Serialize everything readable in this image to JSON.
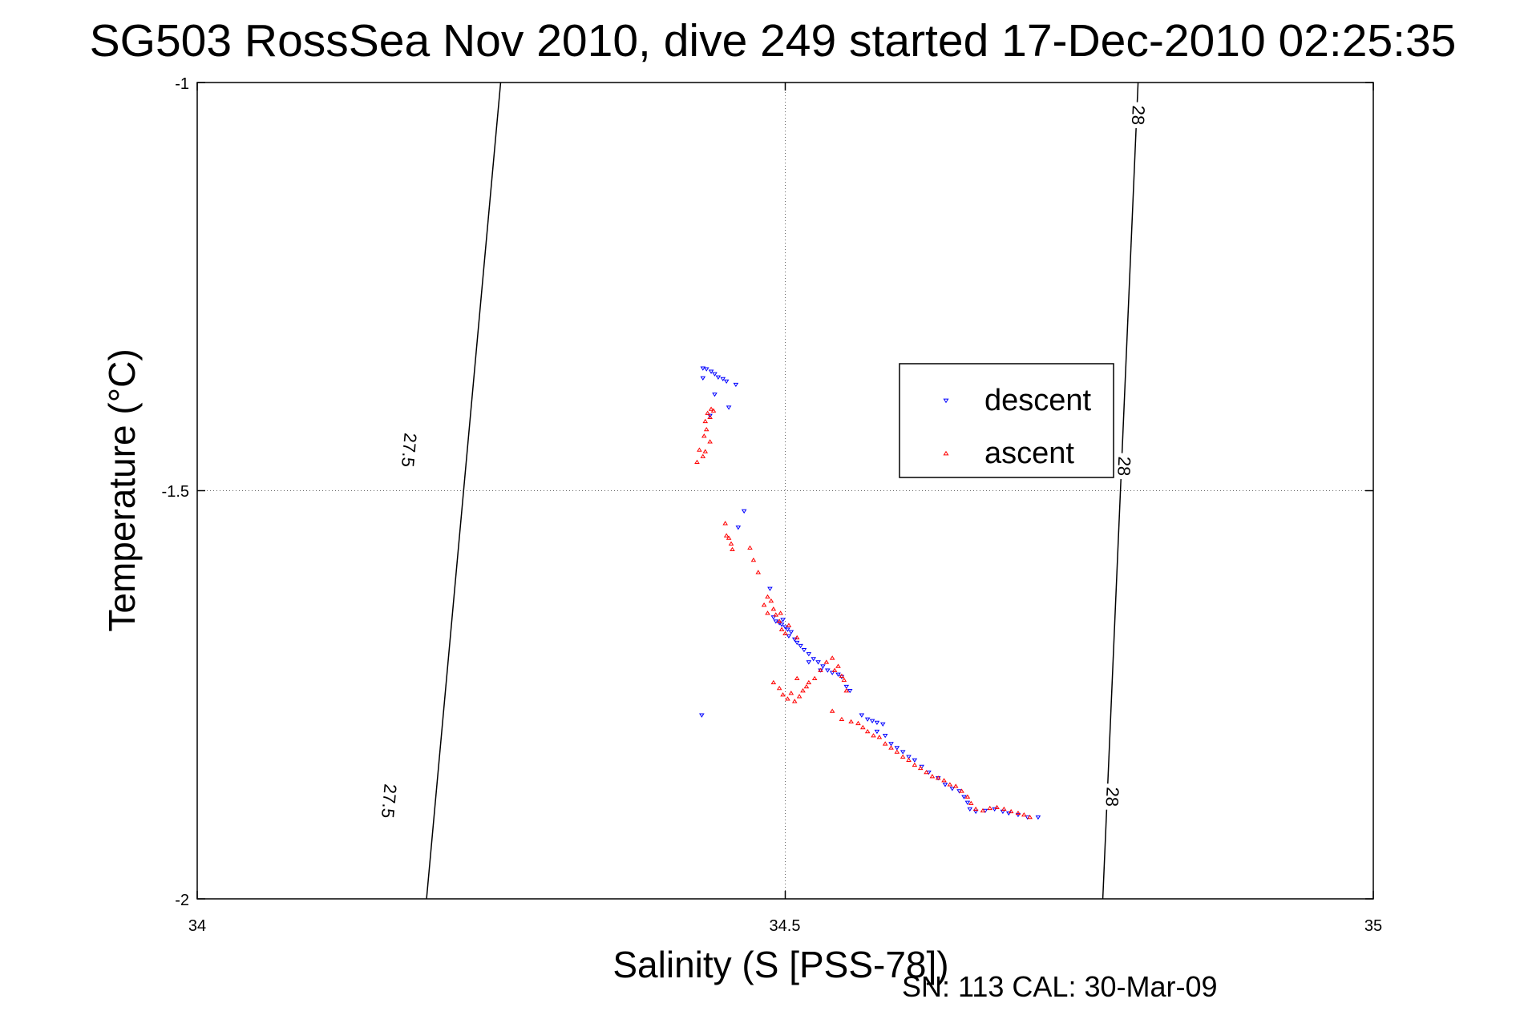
{
  "chart_data": {
    "type": "scatter",
    "title": "SG503 RossSea Nov 2010, dive 249 started 17-Dec-2010 02:25:35",
    "xlabel": "Salinity (S [PSS-78])",
    "ylabel": "Temperature (°C)",
    "xlim": [
      34,
      35
    ],
    "ylim": [
      -2,
      -1
    ],
    "xticks": [
      "34",
      "34.5",
      "35"
    ],
    "yticks": [
      "-1",
      "-1.5",
      "-2"
    ],
    "grid": true,
    "legend_position": "center-right",
    "annotation": "SN: 113  CAL: 30-Mar-09",
    "contours": [
      {
        "label": "27.5",
        "points": [
          [
            34.195,
            -2.0
          ],
          [
            34.258,
            -1.0
          ]
        ],
        "label_positions": [
          [
            34.162,
            -1.88
          ],
          [
            34.179,
            -1.45
          ]
        ]
      },
      {
        "label": "28",
        "points": [
          [
            34.77,
            -2.0
          ],
          [
            34.8,
            -1.0
          ]
        ],
        "label_positions": [
          [
            34.777,
            -1.875
          ],
          [
            34.787,
            -1.47
          ],
          [
            34.799,
            -1.04
          ]
        ]
      }
    ],
    "series": [
      {
        "name": "descent",
        "color": "#0000ff",
        "marker": "triangle-down",
        "points": [
          [
            34.43,
            -1.35
          ],
          [
            34.433,
            -1.351
          ],
          [
            34.437,
            -1.354
          ],
          [
            34.44,
            -1.357
          ],
          [
            34.443,
            -1.361
          ],
          [
            34.447,
            -1.363
          ],
          [
            34.43,
            -1.362
          ],
          [
            34.45,
            -1.366
          ],
          [
            34.458,
            -1.37
          ],
          [
            34.44,
            -1.382
          ],
          [
            34.452,
            -1.398
          ],
          [
            34.436,
            -1.408
          ],
          [
            34.465,
            -1.525
          ],
          [
            34.46,
            -1.545
          ],
          [
            34.487,
            -1.62
          ],
          [
            34.49,
            -1.655
          ],
          [
            34.492,
            -1.66
          ],
          [
            34.495,
            -1.662
          ],
          [
            34.497,
            -1.664
          ],
          [
            34.5,
            -1.667
          ],
          [
            34.498,
            -1.658
          ],
          [
            34.502,
            -1.67
          ],
          [
            34.505,
            -1.673
          ],
          [
            34.503,
            -1.678
          ],
          [
            34.508,
            -1.682
          ],
          [
            34.51,
            -1.686
          ],
          [
            34.513,
            -1.69
          ],
          [
            34.516,
            -1.695
          ],
          [
            34.52,
            -1.7
          ],
          [
            34.524,
            -1.706
          ],
          [
            34.528,
            -1.71
          ],
          [
            34.532,
            -1.715
          ],
          [
            34.536,
            -1.72
          ],
          [
            34.54,
            -1.723
          ],
          [
            34.545,
            -1.725
          ],
          [
            34.548,
            -1.728
          ],
          [
            34.552,
            -1.74
          ],
          [
            34.555,
            -1.745
          ],
          [
            34.52,
            -1.71
          ],
          [
            34.53,
            -1.72
          ],
          [
            34.565,
            -1.775
          ],
          [
            34.57,
            -1.78
          ],
          [
            34.574,
            -1.782
          ],
          [
            34.578,
            -1.784
          ],
          [
            34.583,
            -1.786
          ],
          [
            34.578,
            -1.795
          ],
          [
            34.585,
            -1.8
          ],
          [
            34.59,
            -1.81
          ],
          [
            34.595,
            -1.815
          ],
          [
            34.6,
            -1.82
          ],
          [
            34.605,
            -1.826
          ],
          [
            34.61,
            -1.83
          ],
          [
            34.616,
            -1.838
          ],
          [
            34.622,
            -1.845
          ],
          [
            34.63,
            -1.852
          ],
          [
            34.636,
            -1.86
          ],
          [
            34.642,
            -1.865
          ],
          [
            34.648,
            -1.868
          ],
          [
            34.652,
            -1.875
          ],
          [
            34.655,
            -1.882
          ],
          [
            34.657,
            -1.89
          ],
          [
            34.662,
            -1.893
          ],
          [
            34.67,
            -1.892
          ],
          [
            34.678,
            -1.89
          ],
          [
            34.685,
            -1.893
          ],
          [
            34.69,
            -1.895
          ],
          [
            34.698,
            -1.897
          ],
          [
            34.706,
            -1.9
          ],
          [
            34.715,
            -1.9
          ],
          [
            34.429,
            -1.775
          ]
        ]
      },
      {
        "name": "ascent",
        "color": "#ff0000",
        "marker": "triangle-up",
        "points": [
          [
            34.437,
            -1.4
          ],
          [
            34.439,
            -1.402
          ],
          [
            34.434,
            -1.405
          ],
          [
            34.436,
            -1.41
          ],
          [
            34.432,
            -1.415
          ],
          [
            34.433,
            -1.425
          ],
          [
            34.431,
            -1.433
          ],
          [
            34.436,
            -1.44
          ],
          [
            34.427,
            -1.45
          ],
          [
            34.43,
            -1.458
          ],
          [
            34.432,
            -1.452
          ],
          [
            34.425,
            -1.465
          ],
          [
            34.449,
            -1.54
          ],
          [
            34.45,
            -1.555
          ],
          [
            34.452,
            -1.558
          ],
          [
            34.454,
            -1.565
          ],
          [
            34.455,
            -1.572
          ],
          [
            34.47,
            -1.57
          ],
          [
            34.473,
            -1.585
          ],
          [
            34.477,
            -1.6
          ],
          [
            34.485,
            -1.63
          ],
          [
            34.488,
            -1.635
          ],
          [
            34.482,
            -1.64
          ],
          [
            34.49,
            -1.645
          ],
          [
            34.485,
            -1.65
          ],
          [
            34.492,
            -1.652
          ],
          [
            34.495,
            -1.66
          ],
          [
            34.497,
            -1.67
          ],
          [
            34.5,
            -1.675
          ],
          [
            34.503,
            -1.665
          ],
          [
            34.51,
            -1.68
          ],
          [
            34.496,
            -1.65
          ],
          [
            34.49,
            -1.735
          ],
          [
            34.495,
            -1.742
          ],
          [
            34.498,
            -1.75
          ],
          [
            34.502,
            -1.755
          ],
          [
            34.505,
            -1.748
          ],
          [
            34.508,
            -1.758
          ],
          [
            34.512,
            -1.752
          ],
          [
            34.515,
            -1.745
          ],
          [
            34.518,
            -1.74
          ],
          [
            34.51,
            -1.73
          ],
          [
            34.52,
            -1.735
          ],
          [
            34.525,
            -1.73
          ],
          [
            34.53,
            -1.72
          ],
          [
            34.535,
            -1.71
          ],
          [
            34.54,
            -1.705
          ],
          [
            34.545,
            -1.715
          ],
          [
            34.542,
            -1.72
          ],
          [
            34.548,
            -1.727
          ],
          [
            34.55,
            -1.732
          ],
          [
            34.552,
            -1.745
          ],
          [
            34.54,
            -1.77
          ],
          [
            34.548,
            -1.78
          ],
          [
            34.556,
            -1.783
          ],
          [
            34.562,
            -1.785
          ],
          [
            34.566,
            -1.79
          ],
          [
            34.57,
            -1.795
          ],
          [
            34.575,
            -1.8
          ],
          [
            34.58,
            -1.802
          ],
          [
            34.585,
            -1.81
          ],
          [
            34.59,
            -1.815
          ],
          [
            34.595,
            -1.82
          ],
          [
            34.6,
            -1.826
          ],
          [
            34.605,
            -1.83
          ],
          [
            34.61,
            -1.836
          ],
          [
            34.615,
            -1.84
          ],
          [
            34.62,
            -1.845
          ],
          [
            34.625,
            -1.85
          ],
          [
            34.63,
            -1.852
          ],
          [
            34.635,
            -1.855
          ],
          [
            34.64,
            -1.86
          ],
          [
            34.645,
            -1.862
          ],
          [
            34.65,
            -1.868
          ],
          [
            34.655,
            -1.875
          ],
          [
            34.658,
            -1.883
          ],
          [
            34.662,
            -1.89
          ],
          [
            34.668,
            -1.892
          ],
          [
            34.674,
            -1.889
          ],
          [
            34.68,
            -1.888
          ],
          [
            34.686,
            -1.89
          ],
          [
            34.692,
            -1.893
          ],
          [
            34.698,
            -1.895
          ],
          [
            34.703,
            -1.897
          ],
          [
            34.708,
            -1.9
          ]
        ]
      }
    ]
  }
}
